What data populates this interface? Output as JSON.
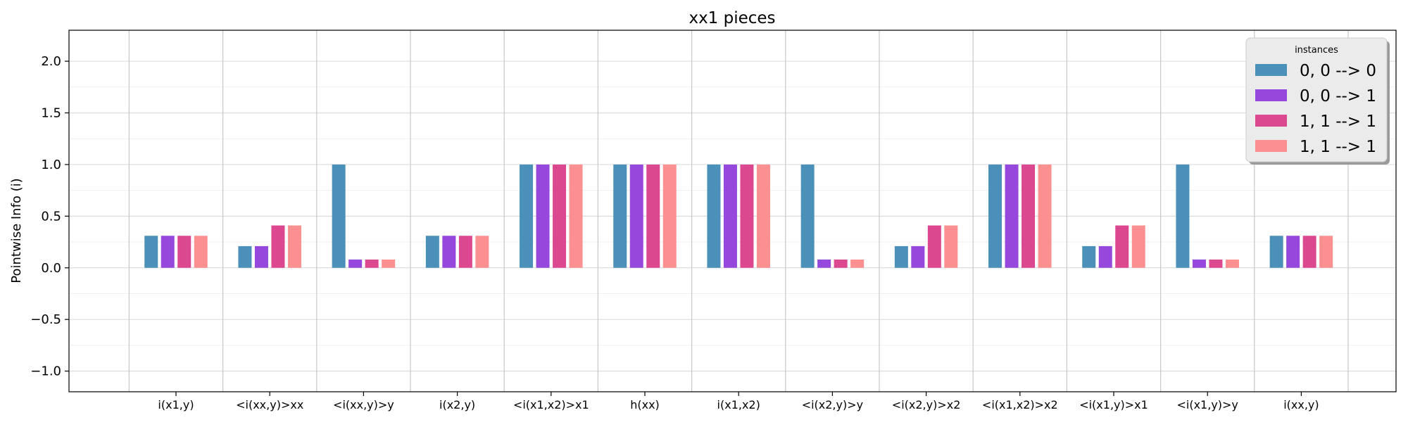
{
  "chart_data": {
    "type": "bar",
    "title": "xx1 pieces",
    "xlabel": "",
    "ylabel": "Pointwise Info (i)",
    "ylim": [
      -1.2,
      2.3
    ],
    "yticks": [
      -1.0,
      -0.5,
      0.0,
      0.5,
      1.0,
      1.5,
      2.0
    ],
    "ytick_labels": [
      "−1.0",
      "−0.5",
      "0.0",
      "0.5",
      "1.0",
      "1.5",
      "2.0"
    ],
    "grid": true,
    "legend_position": "top-right",
    "legend_title": "instances",
    "categories": [
      "i(x1,y)",
      "<i(xx,y)>xx",
      "<i(xx,y)>y",
      "i(x2,y)",
      "<i(x1,x2)>x1",
      "h(xx)",
      "i(x1,x2)",
      "<i(x2,y)>y",
      "<i(x2,y)>x2",
      "<i(x1,x2)>x2",
      "<i(x1,y)>x1",
      "<i(x1,y)>y",
      "i(xx,y)"
    ],
    "series": [
      {
        "name": "0, 0 --> 0",
        "color": "#4a90b8",
        "values": [
          0.31,
          0.21,
          1.0,
          0.31,
          1.0,
          1.0,
          1.0,
          1.0,
          0.21,
          1.0,
          0.21,
          1.0,
          0.31
        ]
      },
      {
        "name": "0, 0 --> 1",
        "color": "#9648dc",
        "values": [
          0.31,
          0.21,
          0.08,
          0.31,
          1.0,
          1.0,
          1.0,
          0.08,
          0.21,
          1.0,
          0.21,
          0.08,
          0.31
        ]
      },
      {
        "name": "1, 1 --> 1",
        "color": "#dc4890",
        "values": [
          0.31,
          0.41,
          0.08,
          0.31,
          1.0,
          1.0,
          1.0,
          0.08,
          0.41,
          1.0,
          0.41,
          0.08,
          0.31
        ]
      },
      {
        "name": "1, 1 --> 1",
        "color": "#fc9090",
        "values": [
          0.31,
          0.41,
          0.08,
          0.31,
          1.0,
          1.0,
          1.0,
          0.08,
          0.41,
          1.0,
          0.41,
          0.08,
          0.31
        ]
      }
    ]
  }
}
